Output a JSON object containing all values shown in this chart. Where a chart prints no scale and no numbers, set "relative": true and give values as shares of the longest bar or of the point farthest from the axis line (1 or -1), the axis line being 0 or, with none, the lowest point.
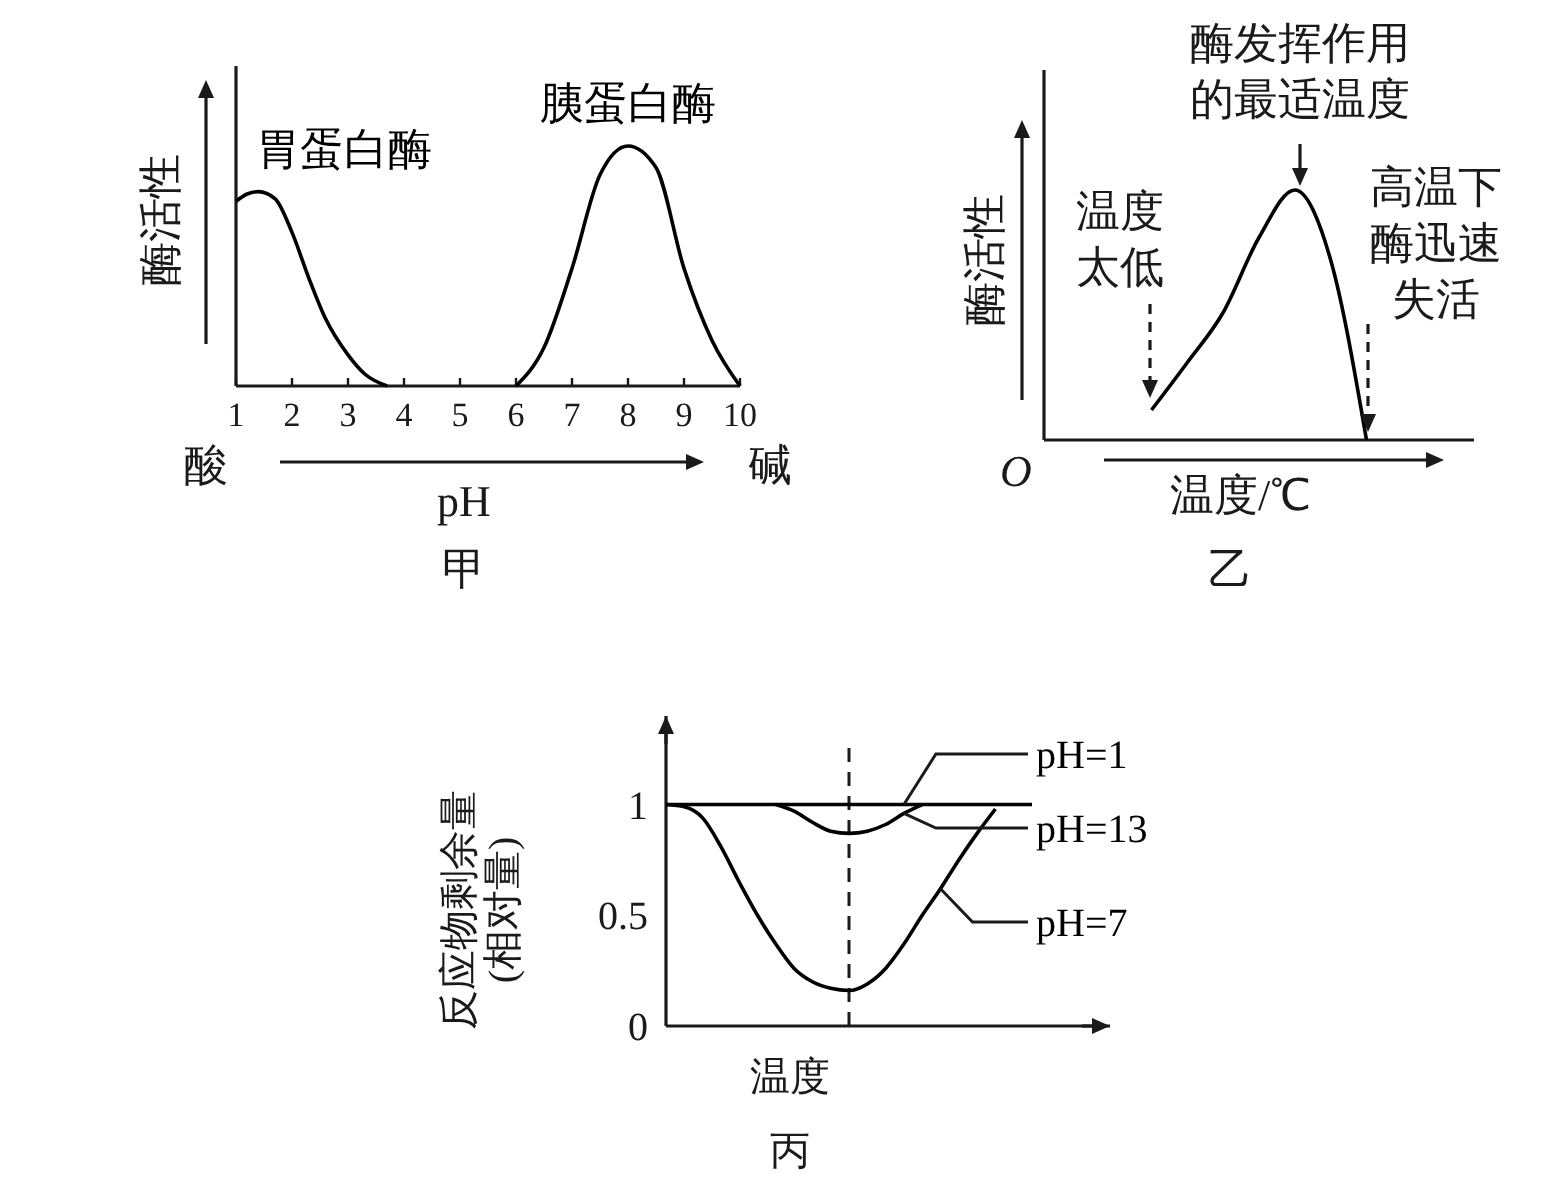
{
  "chart_data": [
    {
      "type": "line",
      "relative": true,
      "ylabel": "酶活性",
      "xlabel": "pH",
      "xlim": [
        1,
        10
      ],
      "xticks": [
        1,
        2,
        3,
        4,
        5,
        6,
        7,
        8,
        9,
        10
      ],
      "tick_labels": "x",
      "marker": "none",
      "line_style": "solid",
      "annotations": [
        "酸",
        "碱",
        "甲"
      ],
      "series": [
        {
          "name": "胃蛋白酶",
          "color": "#000000",
          "x": [
            1,
            1.2,
            1.4,
            1.7,
            2,
            2.3,
            2.6,
            3,
            3.3,
            3.7
          ],
          "values": [
            0.77,
            0.8,
            0.81,
            0.78,
            0.64,
            0.45,
            0.28,
            0.13,
            0.05,
            0
          ]
        },
        {
          "name": "胰蛋白酶",
          "color": "#000000",
          "x": [
            6,
            6.5,
            7,
            7.5,
            8,
            8.5,
            9,
            9.5,
            10
          ],
          "values": [
            0,
            0.16,
            0.49,
            0.88,
            1,
            0.91,
            0.49,
            0.19,
            0
          ]
        }
      ]
    },
    {
      "type": "line",
      "relative": true,
      "ylabel": "酶活性",
      "xlabel": "温度/℃",
      "tick_labels": false,
      "marker": "none",
      "line_style": "solid",
      "color": "#000000",
      "categories": [
        null,
        null,
        null,
        null,
        null,
        null,
        null,
        null,
        null,
        null,
        null,
        null,
        null
      ],
      "values": [
        null,
        null,
        null,
        0.12,
        0.31,
        0.51,
        0.81,
        1,
        0.72,
        0,
        null,
        null,
        null
      ],
      "annotations": [
        "O",
        "酶发挥作用的最适温度",
        "温度太低",
        "高温下酶迅速失活",
        "乙"
      ]
    },
    {
      "type": "line",
      "ylabel": "反应物剩余量(相对量)",
      "xlabel": "温度",
      "ylim": [
        0,
        1.4
      ],
      "yticks": [
        0,
        0.5,
        1
      ],
      "tick_labels": "y",
      "marker": "none",
      "line_style": "solid",
      "legend": "right",
      "categories": [
        null,
        null,
        null,
        null,
        null,
        null,
        null,
        null,
        null,
        null,
        null,
        null,
        null,
        null,
        null,
        null,
        null,
        null,
        null,
        null,
        null
      ],
      "annotations": [
        "丙"
      ],
      "series": [
        {
          "name": "pH=1",
          "color": "#000000",
          "values": [
            1,
            1,
            1,
            1,
            1,
            1,
            1,
            1,
            1,
            1,
            1,
            1,
            1,
            1,
            1,
            1,
            1,
            1,
            1,
            1,
            1
          ]
        },
        {
          "name": "pH=13",
          "color": "#000000",
          "values": [
            null,
            null,
            null,
            null,
            null,
            null,
            1,
            0.97,
            0.92,
            0.88,
            0.87,
            0.88,
            0.91,
            0.96,
            1,
            null,
            null,
            null,
            null,
            null,
            null
          ]
        },
        {
          "name": "pH=7",
          "color": "#000000",
          "values": [
            1,
            0.99,
            0.94,
            0.81,
            0.65,
            0.5,
            0.37,
            0.26,
            0.2,
            0.17,
            0.16,
            0.19,
            0.26,
            0.37,
            0.5,
            0.62,
            0.75,
            0.87,
            0.98,
            null,
            null
          ]
        }
      ]
    }
  ]
}
